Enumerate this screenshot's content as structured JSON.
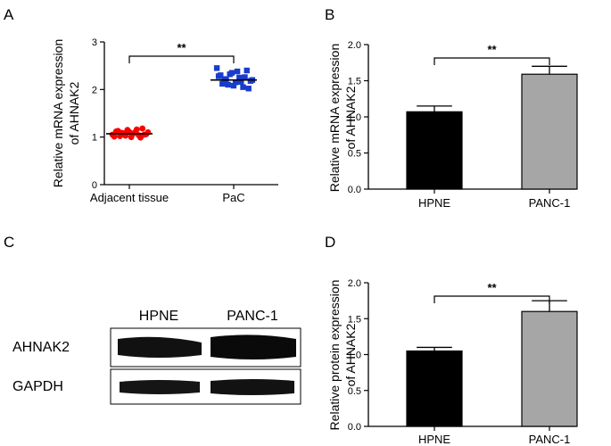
{
  "panels": {
    "a": "A",
    "b": "B",
    "c": "C",
    "d": "D"
  },
  "blot": {
    "lanes": [
      "HPNE",
      "PANC-1"
    ],
    "rows": [
      "AHNAK2",
      "GAPDH"
    ]
  },
  "colors": {
    "adjacent_points": "#ff0000",
    "pac_points": "#1a3ccc",
    "hpne_bar": "#000000",
    "panc1_bar": "#a6a6a6"
  },
  "chart_data": [
    {
      "panel": "A",
      "type": "scatter",
      "ylabel": [
        "Relative mRNA expression",
        "of AHNAK2"
      ],
      "categories": [
        "Adjacent tissue",
        "PaC"
      ],
      "ylim": [
        0,
        3
      ],
      "yticks": [
        "0",
        "1",
        "2",
        "3"
      ],
      "significance": "**",
      "series": [
        {
          "category": "Adjacent tissue",
          "marker": "circle",
          "values": [
            1.05,
            1.12,
            1.02,
            1.08,
            1.15,
            1.0,
            1.1,
            1.04,
            1.18,
            1.06,
            1.01,
            1.13,
            1.09,
            1.03,
            1.11,
            1.07,
            1.16,
            0.99,
            1.05,
            1.1
          ],
          "mean": 1.07
        },
        {
          "category": "PaC",
          "marker": "square",
          "values": [
            2.45,
            2.3,
            2.2,
            2.1,
            2.35,
            2.15,
            2.25,
            2.05,
            2.4,
            2.18,
            2.28,
            2.12,
            2.22,
            2.32,
            2.08,
            2.38,
            2.16,
            2.26,
            2.02,
            2.2
          ],
          "mean": 2.2
        }
      ]
    },
    {
      "panel": "B",
      "type": "bar",
      "ylabel": [
        "Relative mRNA expression",
        "of AHNAK2"
      ],
      "categories": [
        "HPNE",
        "PANC-1"
      ],
      "values": [
        1.07,
        1.59
      ],
      "errors": [
        0.08,
        0.11
      ],
      "ylim": [
        0,
        2.0
      ],
      "yticks": [
        "0.0",
        "0.5",
        "1.0",
        "1.5",
        "2.0"
      ],
      "significance": "**"
    },
    {
      "panel": "D",
      "type": "bar",
      "ylabel": [
        "Relative protein expression",
        "of AHNAK2"
      ],
      "categories": [
        "HPNE",
        "PANC-1"
      ],
      "values": [
        1.05,
        1.6
      ],
      "errors": [
        0.05,
        0.15
      ],
      "ylim": [
        0,
        2.0
      ],
      "yticks": [
        "0.0",
        "0.5",
        "1.0",
        "1.5",
        "2.0"
      ],
      "significance": "**"
    }
  ]
}
